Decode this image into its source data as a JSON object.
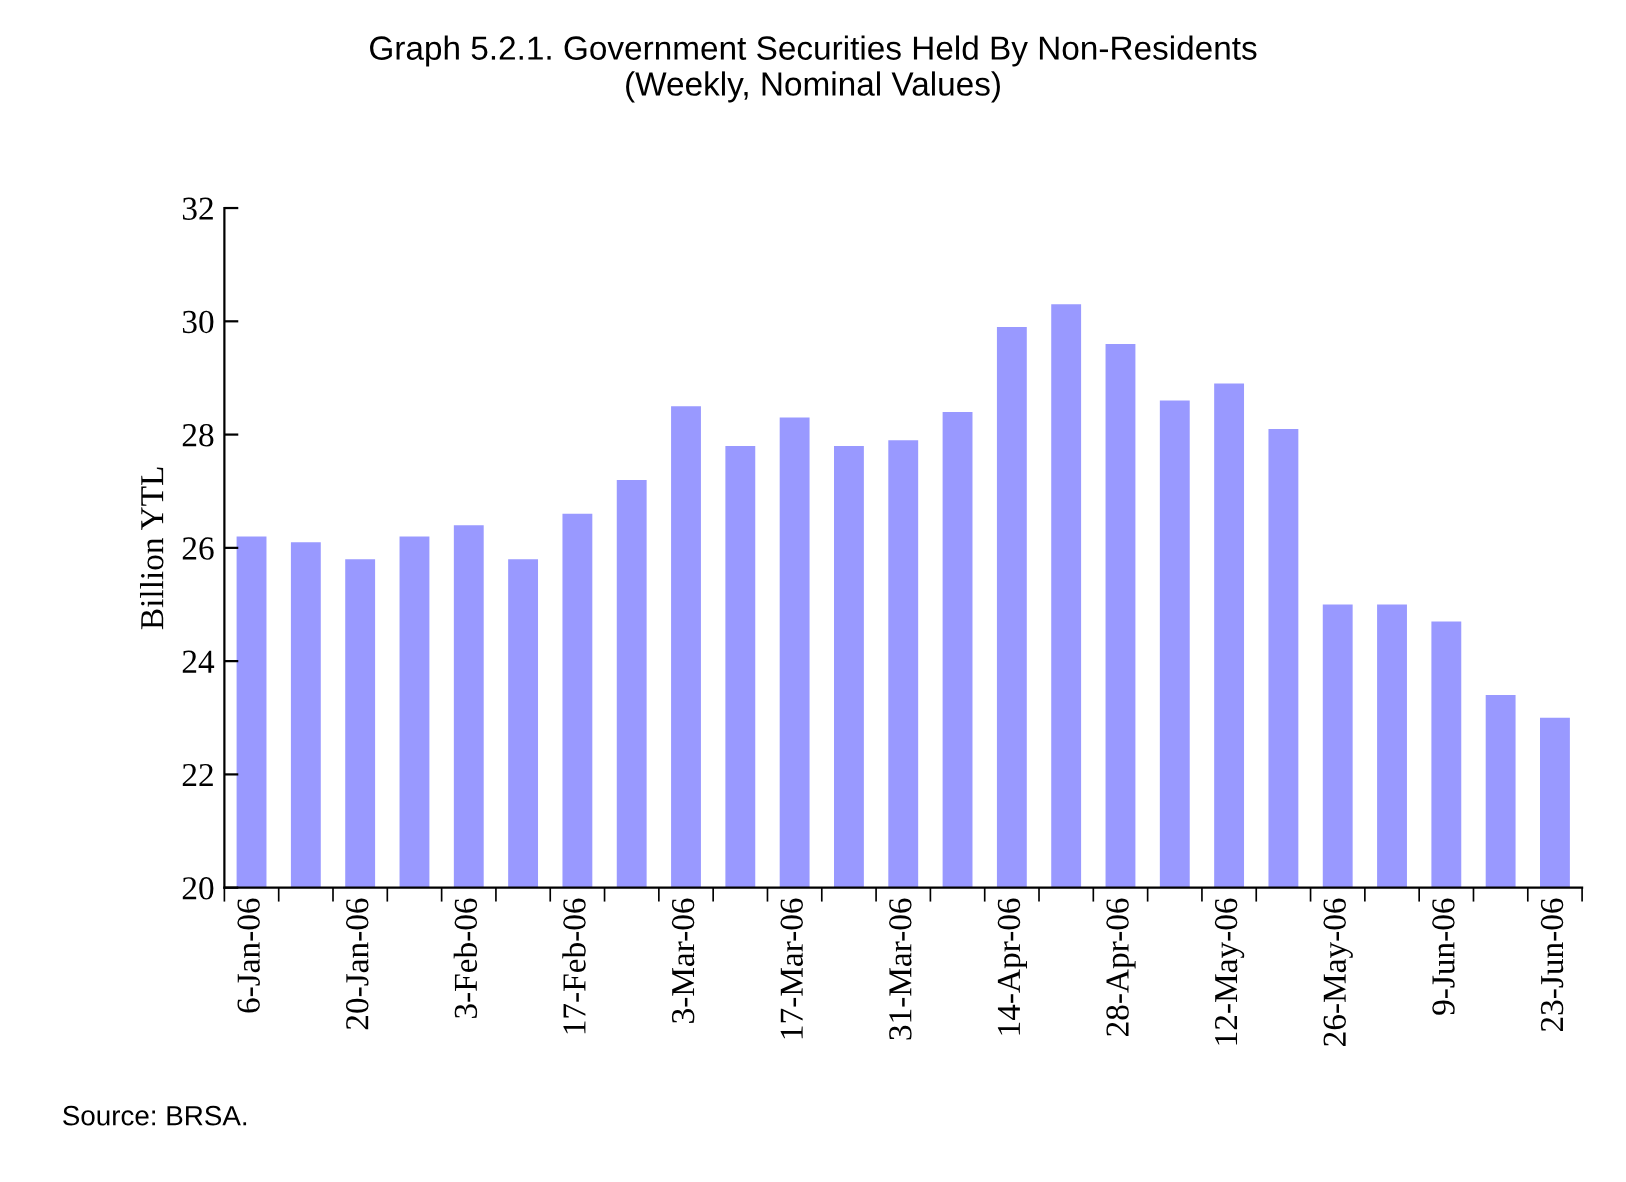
{
  "chart_data": {
    "type": "bar",
    "title": "Graph 5.2.1. Government Securities Held By Non-Residents\n(Weekly, Nominal Values)",
    "ylabel": "Billion YTL",
    "categories": [
      "6-Jan-06",
      null,
      "20-Jan-06",
      null,
      "3-Feb-06",
      null,
      "17-Feb-06",
      null,
      "3-Mar-06",
      null,
      "17-Mar-06",
      null,
      "31-Mar-06",
      null,
      "14-Apr-06",
      null,
      "28-Apr-06",
      null,
      "12-May-06",
      null,
      "26-May-06",
      null,
      "9-Jun-06",
      null,
      "23-Jun-06"
    ],
    "values": [
      26.2,
      26.1,
      25.8,
      26.2,
      26.4,
      25.8,
      26.6,
      27.2,
      28.5,
      27.8,
      28.3,
      27.8,
      27.9,
      28.4,
      29.9,
      30.3,
      29.6,
      28.6,
      28.9,
      28.1,
      25.0,
      25.0,
      24.7,
      23.4,
      23.0
    ],
    "color": "#9999ff",
    "ylim": [
      20,
      32
    ],
    "yticks": [
      20,
      22,
      24,
      26,
      28,
      30,
      32
    ],
    "grid": false,
    "legend": false,
    "annotations": [
      "Source: BRSA."
    ]
  }
}
